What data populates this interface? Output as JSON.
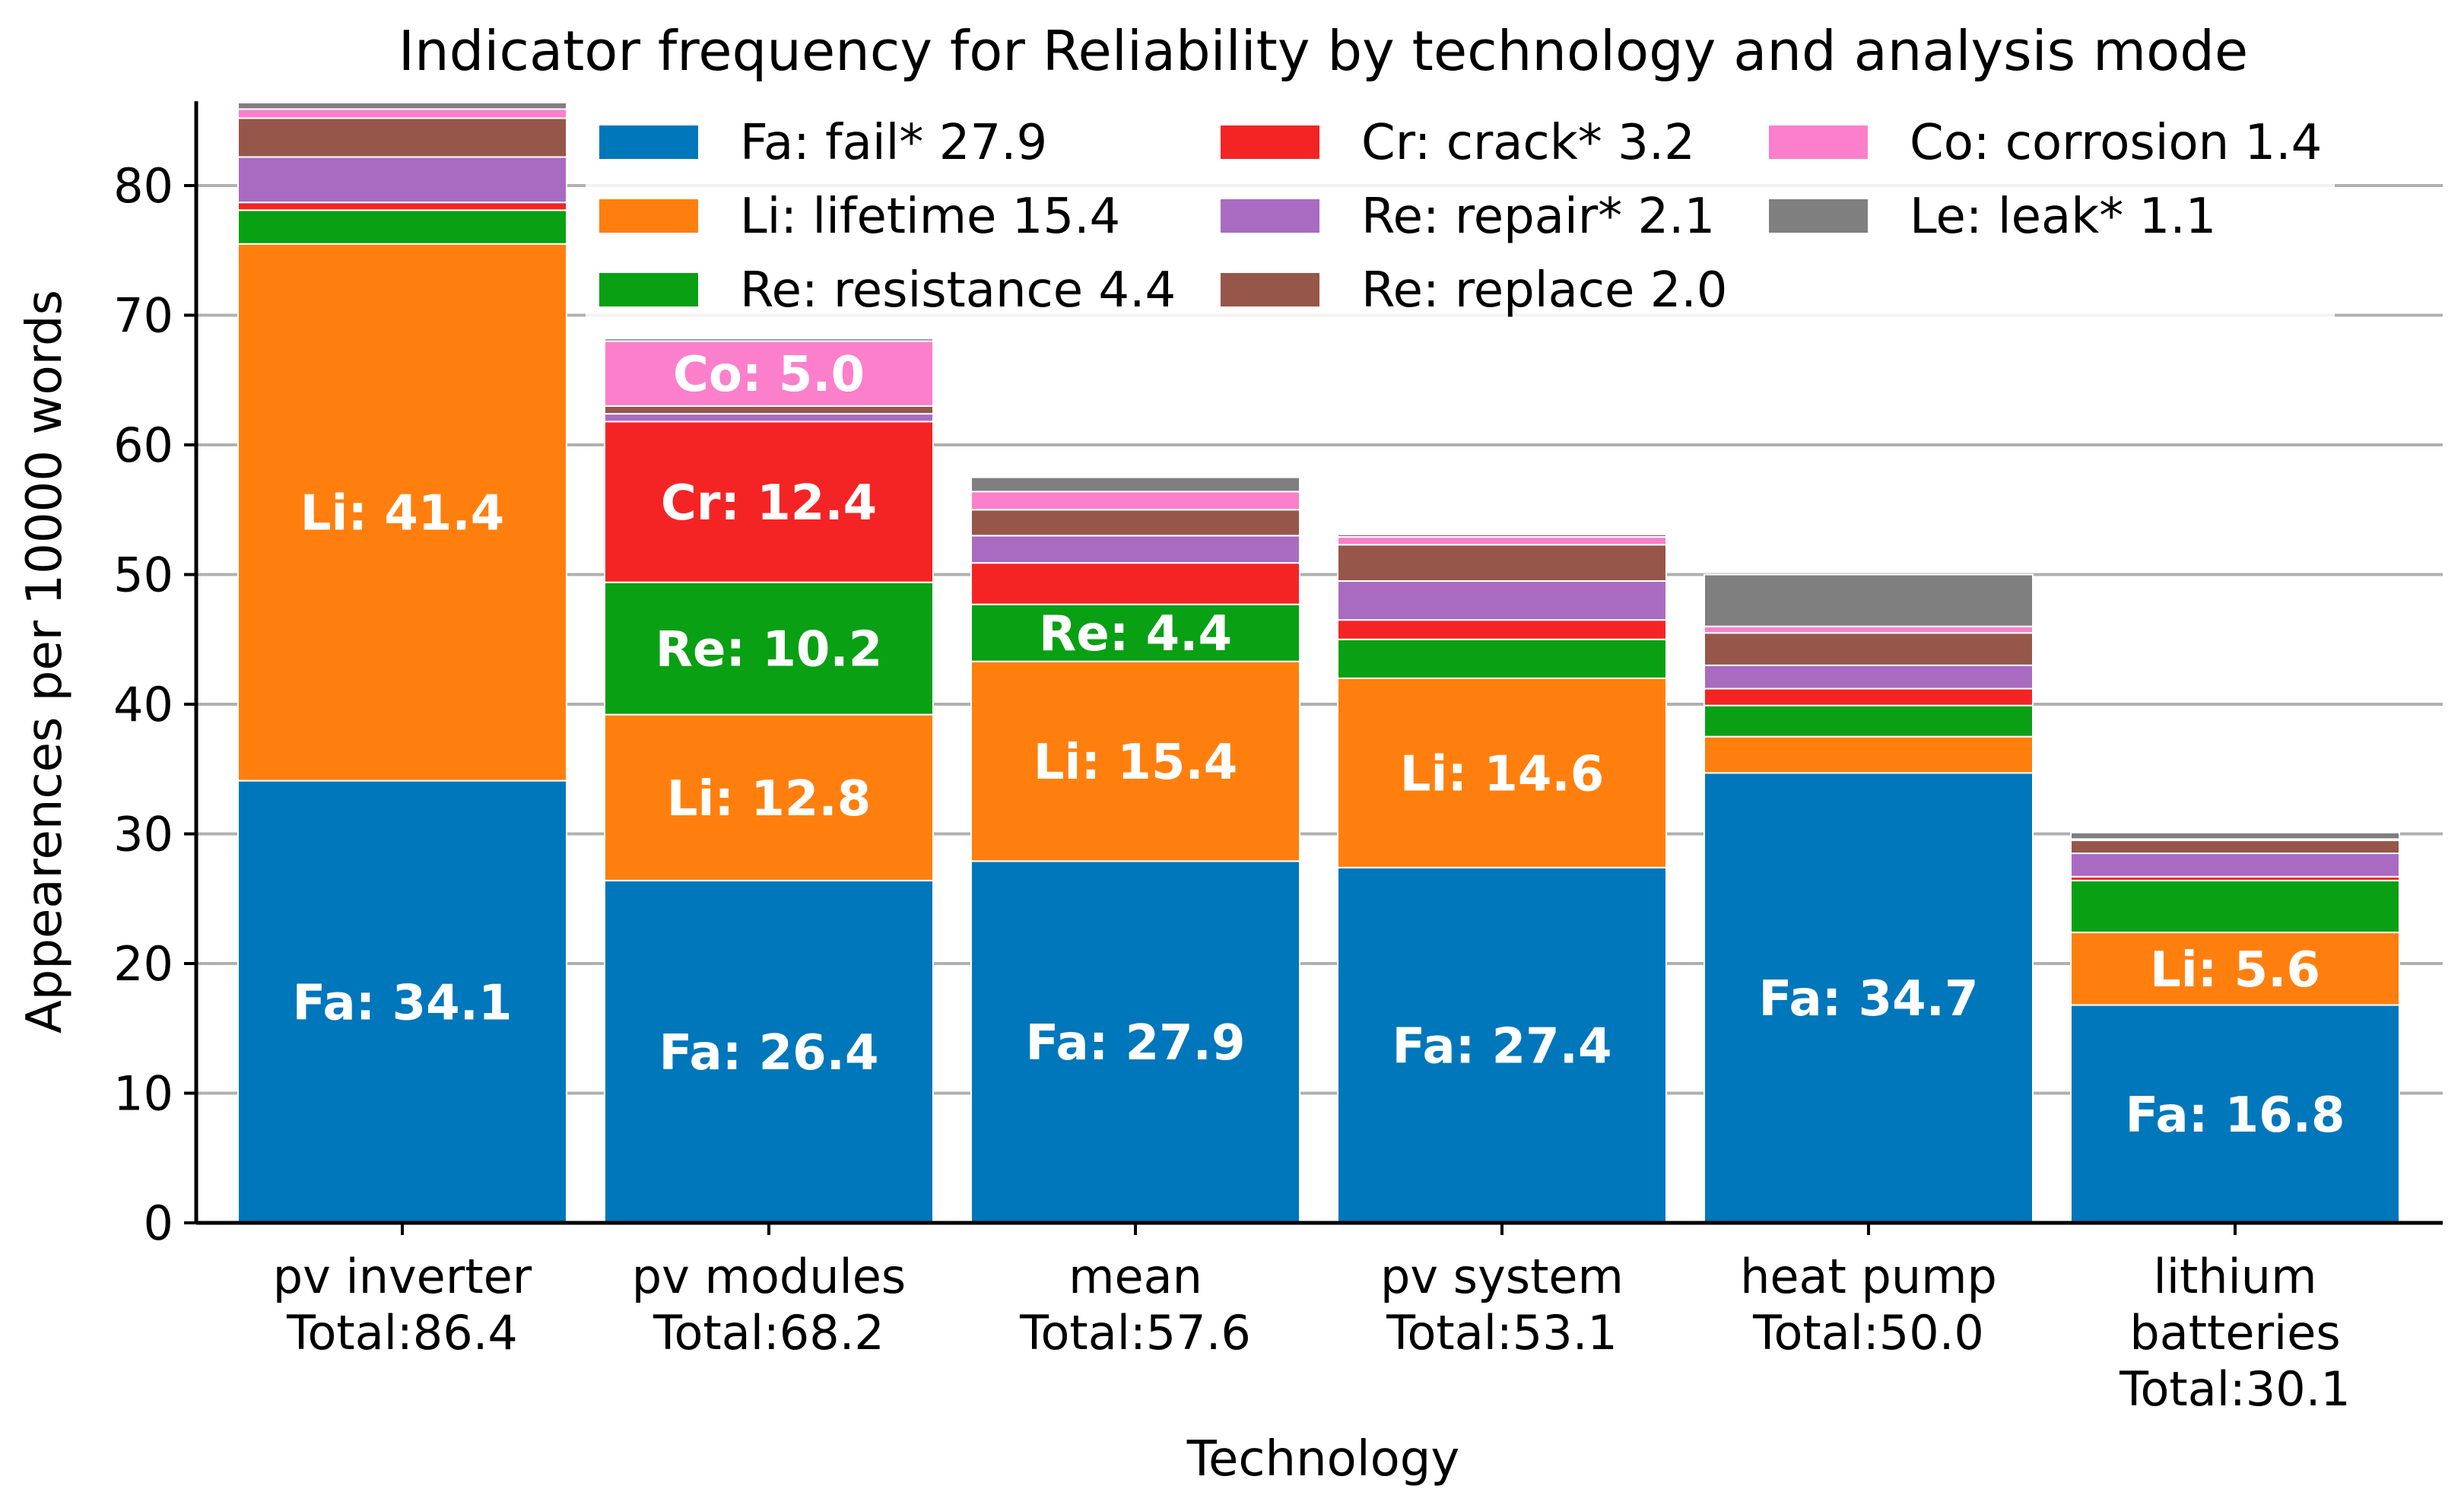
{
  "chart_data": {
    "type": "bar",
    "stacked": true,
    "title": "Indicator frequency for Reliability by technology and analysis mode",
    "xlabel": "Technology",
    "ylabel": "Appearences per 10000 words",
    "ylim": [
      0,
      86.5
    ],
    "yticks": [
      0,
      10,
      20,
      30,
      40,
      50,
      60,
      70,
      80
    ],
    "grid": "horizontal",
    "legend_position": "top-right",
    "categories": [
      {
        "label": "pv inverter",
        "total_label": "Total:86.4"
      },
      {
        "label": "pv modules",
        "total_label": "Total:68.2"
      },
      {
        "label": "mean",
        "total_label": "Total:57.6"
      },
      {
        "label": "pv system",
        "total_label": "Total:53.1"
      },
      {
        "label": "heat pump",
        "total_label": "Total:50.0"
      },
      {
        "label": "lithium\nbatteries",
        "total_label": "Total:30.1"
      }
    ],
    "series": [
      {
        "key": "Fa",
        "name": "Fa: fail* 27.9",
        "color": "#0077bb",
        "values": [
          34.1,
          26.4,
          27.9,
          27.4,
          34.7,
          16.8
        ],
        "labels": [
          "Fa: 34.1",
          "Fa: 26.4",
          "Fa: 27.9",
          "Fa: 27.4",
          "Fa: 34.7",
          "Fa: 16.8"
        ]
      },
      {
        "key": "Li",
        "name": "Li: lifetime 15.4",
        "color": "#ff7f0e",
        "values": [
          41.4,
          12.8,
          15.4,
          14.6,
          2.8,
          5.6
        ],
        "labels": [
          "Li: 41.4",
          "Li: 12.8",
          "Li: 15.4",
          "Li: 14.6",
          "",
          "Li: 5.6"
        ]
      },
      {
        "key": "Re",
        "name": "Re: resistance 4.4",
        "color": "#09a014",
        "values": [
          2.6,
          10.2,
          4.4,
          3.0,
          2.4,
          4.0
        ],
        "labels": [
          "",
          "Re: 10.2",
          "Re: 4.4",
          "",
          "",
          ""
        ]
      },
      {
        "key": "Cr",
        "name": "Cr: crack* 3.2",
        "color": "#f52424",
        "values": [
          0.6,
          12.4,
          3.2,
          1.5,
          1.3,
          0.3
        ],
        "labels": [
          "",
          "Cr: 12.4",
          "",
          "",
          "",
          ""
        ]
      },
      {
        "key": "Re2",
        "name": "Re: repair* 2.1",
        "color": "#a86bc1",
        "values": [
          3.5,
          0.6,
          2.1,
          3.0,
          1.8,
          1.8
        ],
        "labels": [
          "",
          "",
          "",
          "",
          "",
          ""
        ]
      },
      {
        "key": "Re3",
        "name": "Re: replace 2.0",
        "color": "#97564a",
        "values": [
          3.0,
          0.6,
          2.0,
          2.8,
          2.5,
          1.0
        ],
        "labels": [
          "",
          "",
          "",
          "",
          "",
          ""
        ]
      },
      {
        "key": "Co",
        "name": "Co: corrosion 1.4",
        "color": "#fb7fcb",
        "values": [
          0.7,
          5.0,
          1.4,
          0.6,
          0.5,
          0.1
        ],
        "labels": [
          "",
          "Co: 5.0",
          "",
          "",
          "",
          ""
        ]
      },
      {
        "key": "Le",
        "name": "Le: leak* 1.1",
        "color": "#7f7f7f",
        "values": [
          0.5,
          0.2,
          1.1,
          0.2,
          4.0,
          0.5
        ],
        "labels": [
          "",
          "",
          "",
          "",
          "",
          ""
        ]
      }
    ]
  }
}
